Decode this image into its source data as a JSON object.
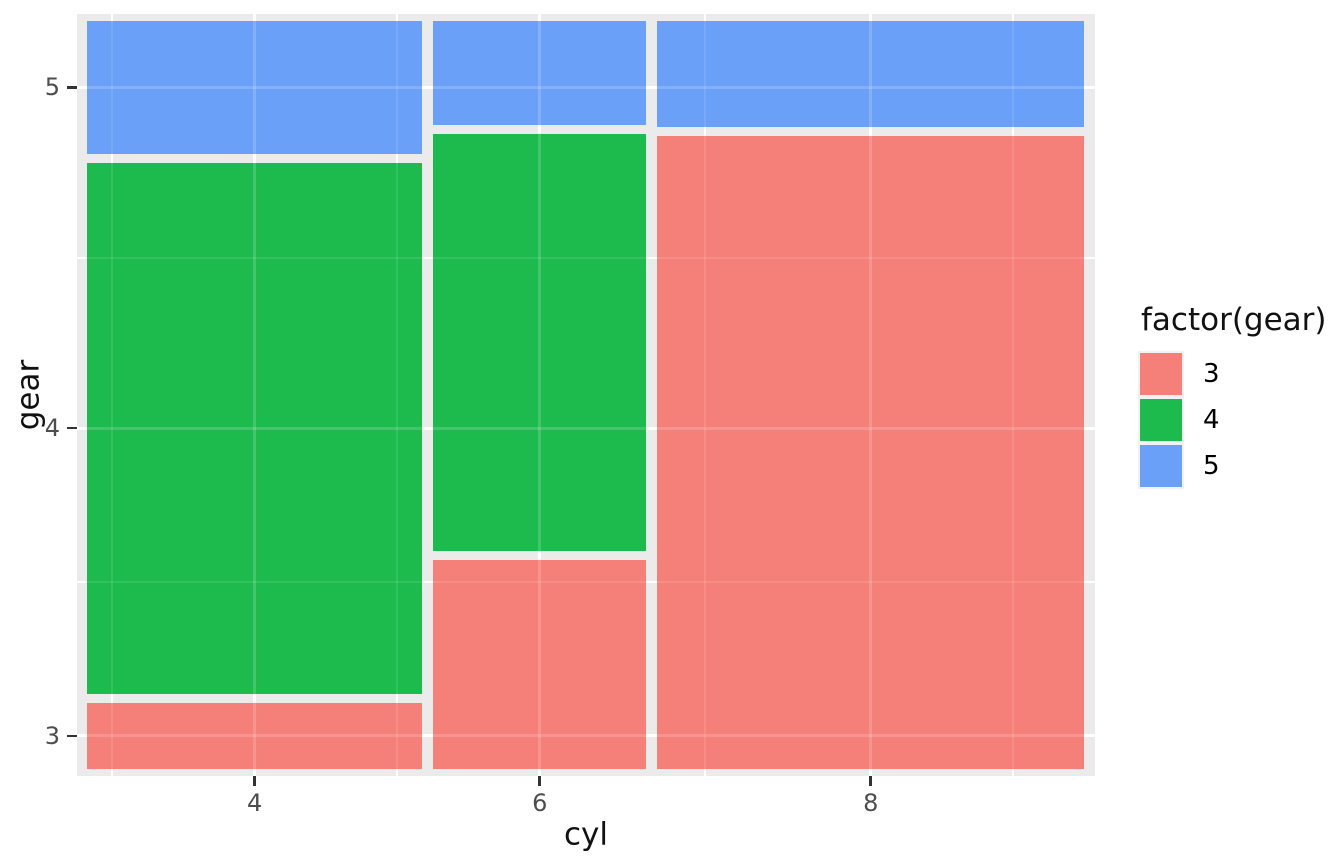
{
  "axes": {
    "x": {
      "title": "cyl",
      "tick_labels": [
        "4",
        "6",
        "8"
      ]
    },
    "y": {
      "title": "gear",
      "tick_labels": [
        "3",
        "4",
        "5"
      ]
    }
  },
  "legend": {
    "title": "factor(gear)",
    "entries": [
      {
        "label": "3",
        "color": "#F5807A"
      },
      {
        "label": "4",
        "color": "#1DBB4E"
      },
      {
        "label": "5",
        "color": "#6BA0F8"
      }
    ]
  },
  "colors": {
    "panel_background": "#EBEBEB",
    "gridline": "#FFFFFF",
    "tick_mark": "#333333",
    "tick_text": "#4D4D4D",
    "title_text": "#111111",
    "legend_key_background": "#F2F2F2"
  },
  "chart_data": {
    "type": "mosaic",
    "title": "",
    "xlabel": "cyl",
    "ylabel": "gear",
    "fill_var": "factor(gear)",
    "x_categories": [
      "4",
      "6",
      "8"
    ],
    "fill_categories": [
      "3",
      "4",
      "5"
    ],
    "fill_colors": {
      "3": "#F5807A",
      "4": "#1DBB4E",
      "5": "#6BA0F8"
    },
    "column_totals": {
      "4": 11,
      "6": 7,
      "8": 14
    },
    "cells": [
      {
        "cyl": "4",
        "gear": "3",
        "count": 1
      },
      {
        "cyl": "4",
        "gear": "4",
        "count": 8
      },
      {
        "cyl": "4",
        "gear": "5",
        "count": 2
      },
      {
        "cyl": "6",
        "gear": "3",
        "count": 2
      },
      {
        "cyl": "6",
        "gear": "4",
        "count": 4
      },
      {
        "cyl": "6",
        "gear": "5",
        "count": 1
      },
      {
        "cyl": "8",
        "gear": "3",
        "count": 12
      },
      {
        "cyl": "8",
        "gear": "4",
        "count": 0
      },
      {
        "cyl": "8",
        "gear": "5",
        "count": 2
      }
    ],
    "x_axis_note": "tick placed at horizontal midpoint of each cyl column",
    "y_axis_note": "tick placed at vertical midpoint of matching gear segment in first column",
    "grid": "white major gridlines at tick positions, faint minor gridlines at midpoints, visible through bars"
  }
}
